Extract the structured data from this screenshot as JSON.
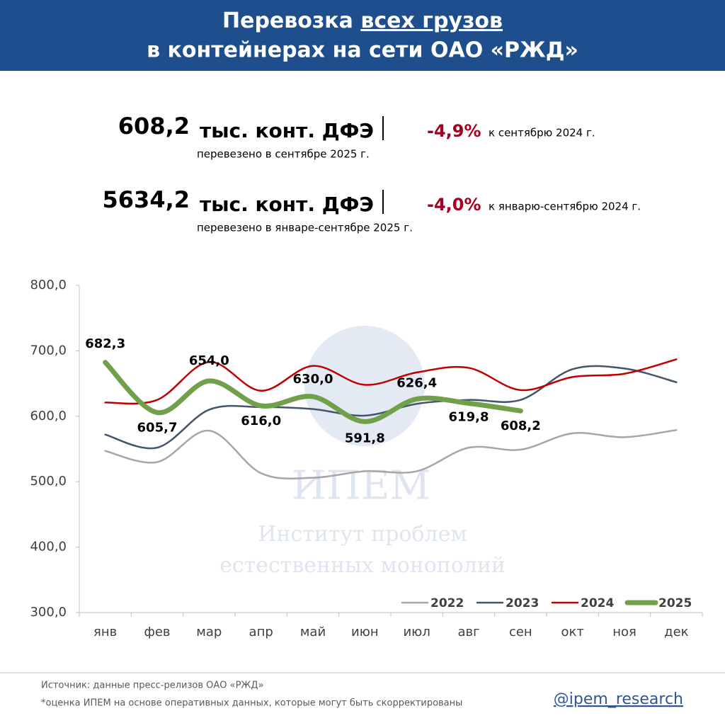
{
  "header": {
    "title_line1_start": "Перевозка ",
    "title_line1_underlined": "всех грузов",
    "title_line2": "в контейнерах на сети ОАО «РЖД»"
  },
  "stats": [
    {
      "value": "608,2",
      "unit": "тыс. конт. ДФЭ",
      "caption": "перевезено в сентябре 2025 г.",
      "change": "-4,9%",
      "change_note": "к сентябрю 2024 г."
    },
    {
      "value": "5634,2",
      "unit": "тыс. конт. ДФЭ",
      "caption": "перевезено в январе-сентябре 2025 г.",
      "change": "-4,0%",
      "change_note": "к январю-сентябрю 2024 г."
    }
  ],
  "watermark": {
    "logo": "ИПЕМ",
    "line1": "Институт проблем",
    "line2": "естественных монополий"
  },
  "chart_data": {
    "type": "line",
    "categories": [
      "янв",
      "фев",
      "мар",
      "апр",
      "май",
      "июн",
      "июл",
      "авг",
      "сен",
      "окт",
      "ноя",
      "дек"
    ],
    "ylim": [
      300,
      800
    ],
    "yticks": [
      {
        "value": 300,
        "label": "300,0"
      },
      {
        "value": 400,
        "label": "400,0"
      },
      {
        "value": 500,
        "label": "500,0"
      },
      {
        "value": 600,
        "label": "600,0"
      },
      {
        "value": 700,
        "label": "700,0"
      },
      {
        "value": 800,
        "label": "800,0"
      }
    ],
    "legend": "lower right",
    "series": [
      {
        "name": "2022",
        "color": "#a6a6a6",
        "values": [
          547,
          530,
          578,
          513,
          506,
          516,
          516,
          552,
          549,
          574,
          568,
          579
        ]
      },
      {
        "name": "2023",
        "color": "#44546a",
        "values": [
          572,
          552,
          610,
          614,
          611,
          601,
          619,
          625,
          625,
          672,
          673,
          652
        ]
      },
      {
        "name": "2024",
        "color": "#c00000",
        "values": [
          621,
          625,
          683,
          639,
          677,
          648,
          667,
          674,
          640,
          660,
          665,
          687
        ]
      },
      {
        "name": "2025",
        "color": "#70a04a",
        "values": [
          682.3,
          605.7,
          654.0,
          616.0,
          630.0,
          591.8,
          626.4,
          619.8,
          608.2,
          null,
          null,
          null
        ],
        "value_labels": [
          "682,3",
          "605,7",
          "654,0",
          "616,0",
          "630,0",
          "591,8",
          "626,4",
          "619,8",
          "608,2",
          null,
          null,
          null
        ]
      }
    ]
  },
  "footer": {
    "source": "Источник: данные пресс-релизов ОАО «РЖД»",
    "note": "*оценка ИПЕМ на основе оперативных данных, которые могут быть скорректированы",
    "handle": "@ipem_research"
  }
}
